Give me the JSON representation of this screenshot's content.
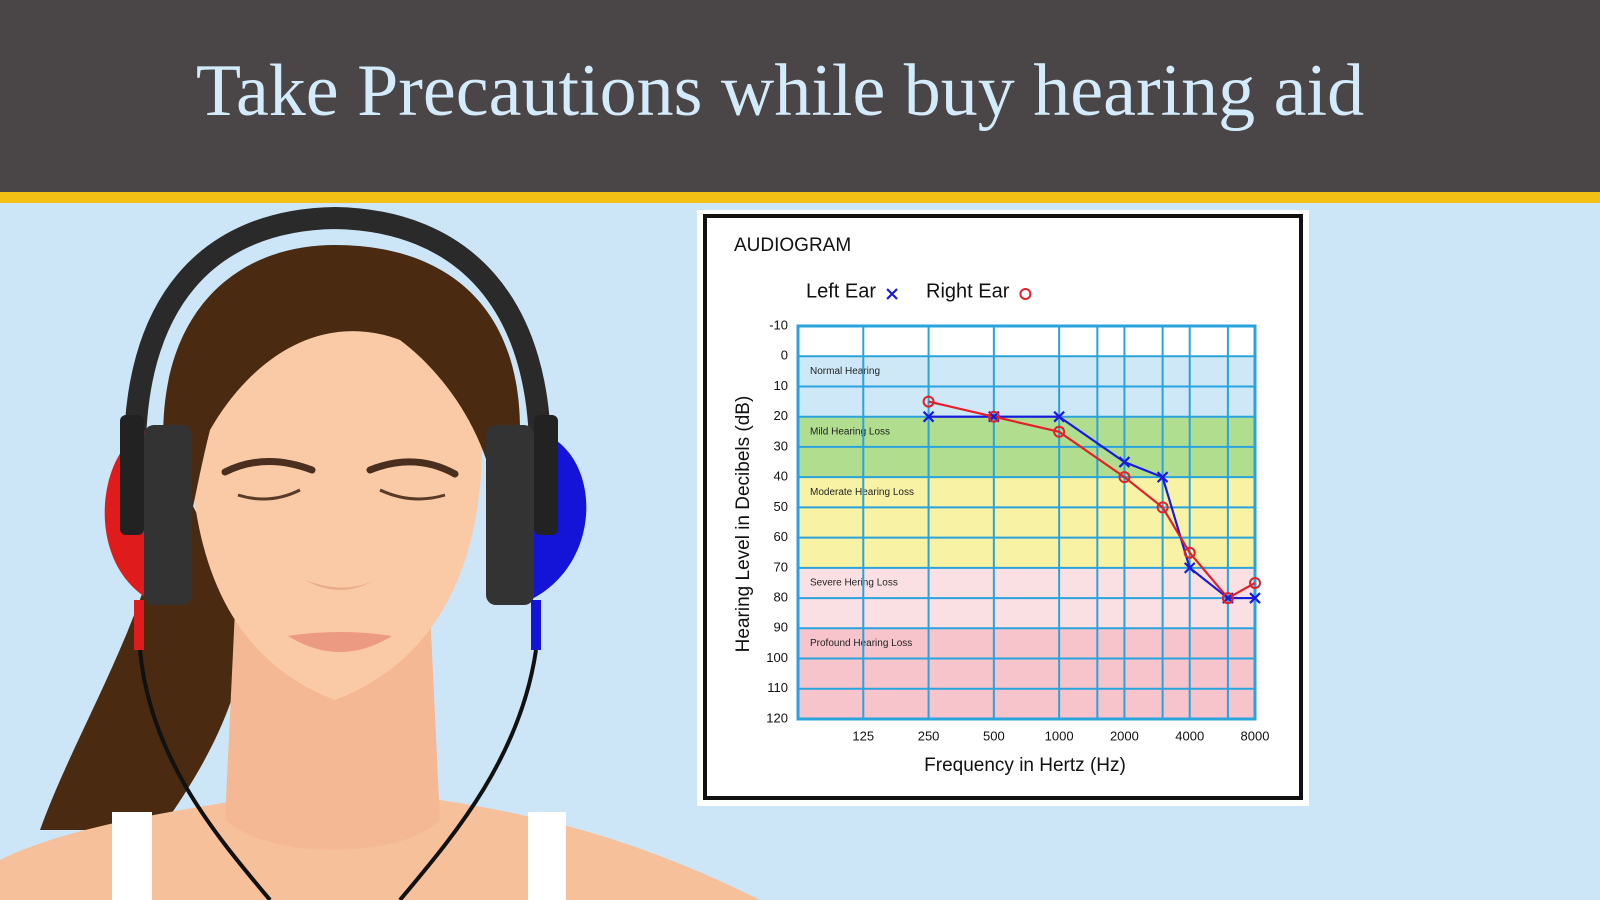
{
  "header": {
    "title": "Take Precautions while buy hearing aid"
  },
  "chart_data": {
    "type": "line",
    "title": "AUDIOGRAM",
    "x_label": "Frequency in Hertz (Hz)",
    "y_label": "Hearing Level in Decibels (dB)",
    "x": [
      250,
      500,
      1000,
      2000,
      3000,
      4000,
      6000,
      8000
    ],
    "series": [
      {
        "name": "Left Ear",
        "color": "#1a1adb",
        "marker": "x",
        "values": [
          20,
          20,
          20,
          35,
          40,
          70,
          80,
          80
        ]
      },
      {
        "name": "Right Ear",
        "color": "#e0222a",
        "marker": "o",
        "values": [
          15,
          20,
          25,
          40,
          50,
          65,
          80,
          75
        ]
      }
    ],
    "xscale": "log",
    "xlim": [
      62.5,
      8000
    ],
    "xticks": [
      125,
      250,
      500,
      1000,
      2000,
      4000,
      8000
    ],
    "x_minor_gridlines": [
      1500,
      3000,
      6000
    ],
    "ylim": [
      -10,
      120
    ],
    "y_inverted": true,
    "yticks": [
      -10,
      0,
      10,
      20,
      30,
      40,
      50,
      60,
      70,
      80,
      90,
      100,
      110,
      120
    ],
    "grid": true,
    "grid_color": "#2aa3dc",
    "bands": [
      {
        "label": "Normal Hearing",
        "from": 0,
        "to": 20,
        "color": "#cfe8f7"
      },
      {
        "label": "Mild Hearing Loss",
        "from": 20,
        "to": 40,
        "color": "#b1dd8f"
      },
      {
        "label": "Moderate Hearing Loss",
        "from": 40,
        "to": 70,
        "color": "#f8f2a4"
      },
      {
        "label": "Severe Hering Loss",
        "from": 70,
        "to": 90,
        "color": "#fbe0e3"
      },
      {
        "label": "Profound Hearing Loss",
        "from": 90,
        "to": 120,
        "color": "#f7c4cc"
      }
    ]
  }
}
